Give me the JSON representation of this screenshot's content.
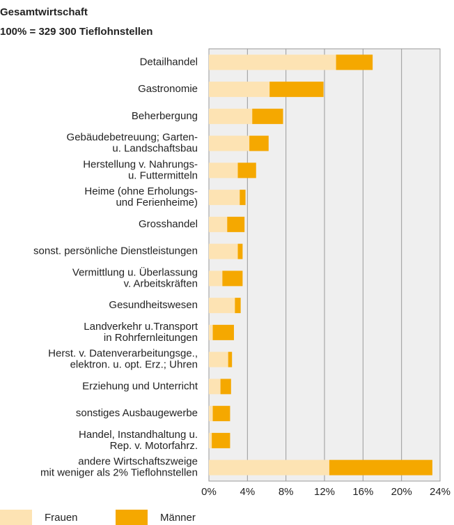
{
  "chart_data": {
    "type": "bar",
    "orientation": "horizontal",
    "stacked": true,
    "title": "Gesamtwirtschaft",
    "subtitle": "100% = 329 300 Tieflohnstellen",
    "categories": [
      "Detailhandel",
      "Gastronomie",
      "Beherbergung",
      "Gebäudebetreuung; Garten-\nu. Landschaftsbau",
      "Herstellung v. Nahrungs-\nu. Futtermitteln",
      "Heime (ohne Erholungs-\nund Ferienheime)",
      "Grosshandel",
      "sonst. persönliche Dienstleistungen",
      "Vermittlung u. Überlassung\nv. Arbeitskräften",
      "Gesundheitswesen",
      "Landverkehr u.Transport\nin Rohrfernleitungen",
      "Herst. v. Datenverarbeitungsge.,\nelektron. u. opt. Erz.; Uhren",
      "Erziehung und Unterricht",
      "sonstiges Ausbaugewerbe",
      "Handel, Instandhaltung u.\nRep. v. Motorfahrz.",
      "andere Wirtschaftszweige\nmit weniger als 2% Tieflohnstellen"
    ],
    "series": [
      {
        "name": "Frauen",
        "color": "#fde3b3",
        "values": [
          13.2,
          6.3,
          4.5,
          4.2,
          3.0,
          3.2,
          1.9,
          3.0,
          1.4,
          2.7,
          0.4,
          2.0,
          1.2,
          0.4,
          0.3,
          12.5
        ]
      },
      {
        "name": "Männer",
        "color": "#f5a800",
        "values": [
          3.8,
          5.6,
          3.2,
          2.0,
          1.9,
          0.6,
          1.8,
          0.5,
          2.1,
          0.6,
          2.2,
          0.4,
          1.1,
          1.8,
          1.9,
          10.7
        ]
      }
    ],
    "xlim": [
      0,
      24
    ],
    "xticks": [
      {
        "value": 0,
        "label": "0%"
      },
      {
        "value": 4,
        "label": "4%"
      },
      {
        "value": 8,
        "label": "8%"
      },
      {
        "value": 12,
        "label": "12%"
      },
      {
        "value": 16,
        "label": "16%"
      },
      {
        "value": 20,
        "label": "20%"
      },
      {
        "value": 24,
        "label": "24%"
      }
    ],
    "grid": true,
    "legend": "bottom-left"
  }
}
